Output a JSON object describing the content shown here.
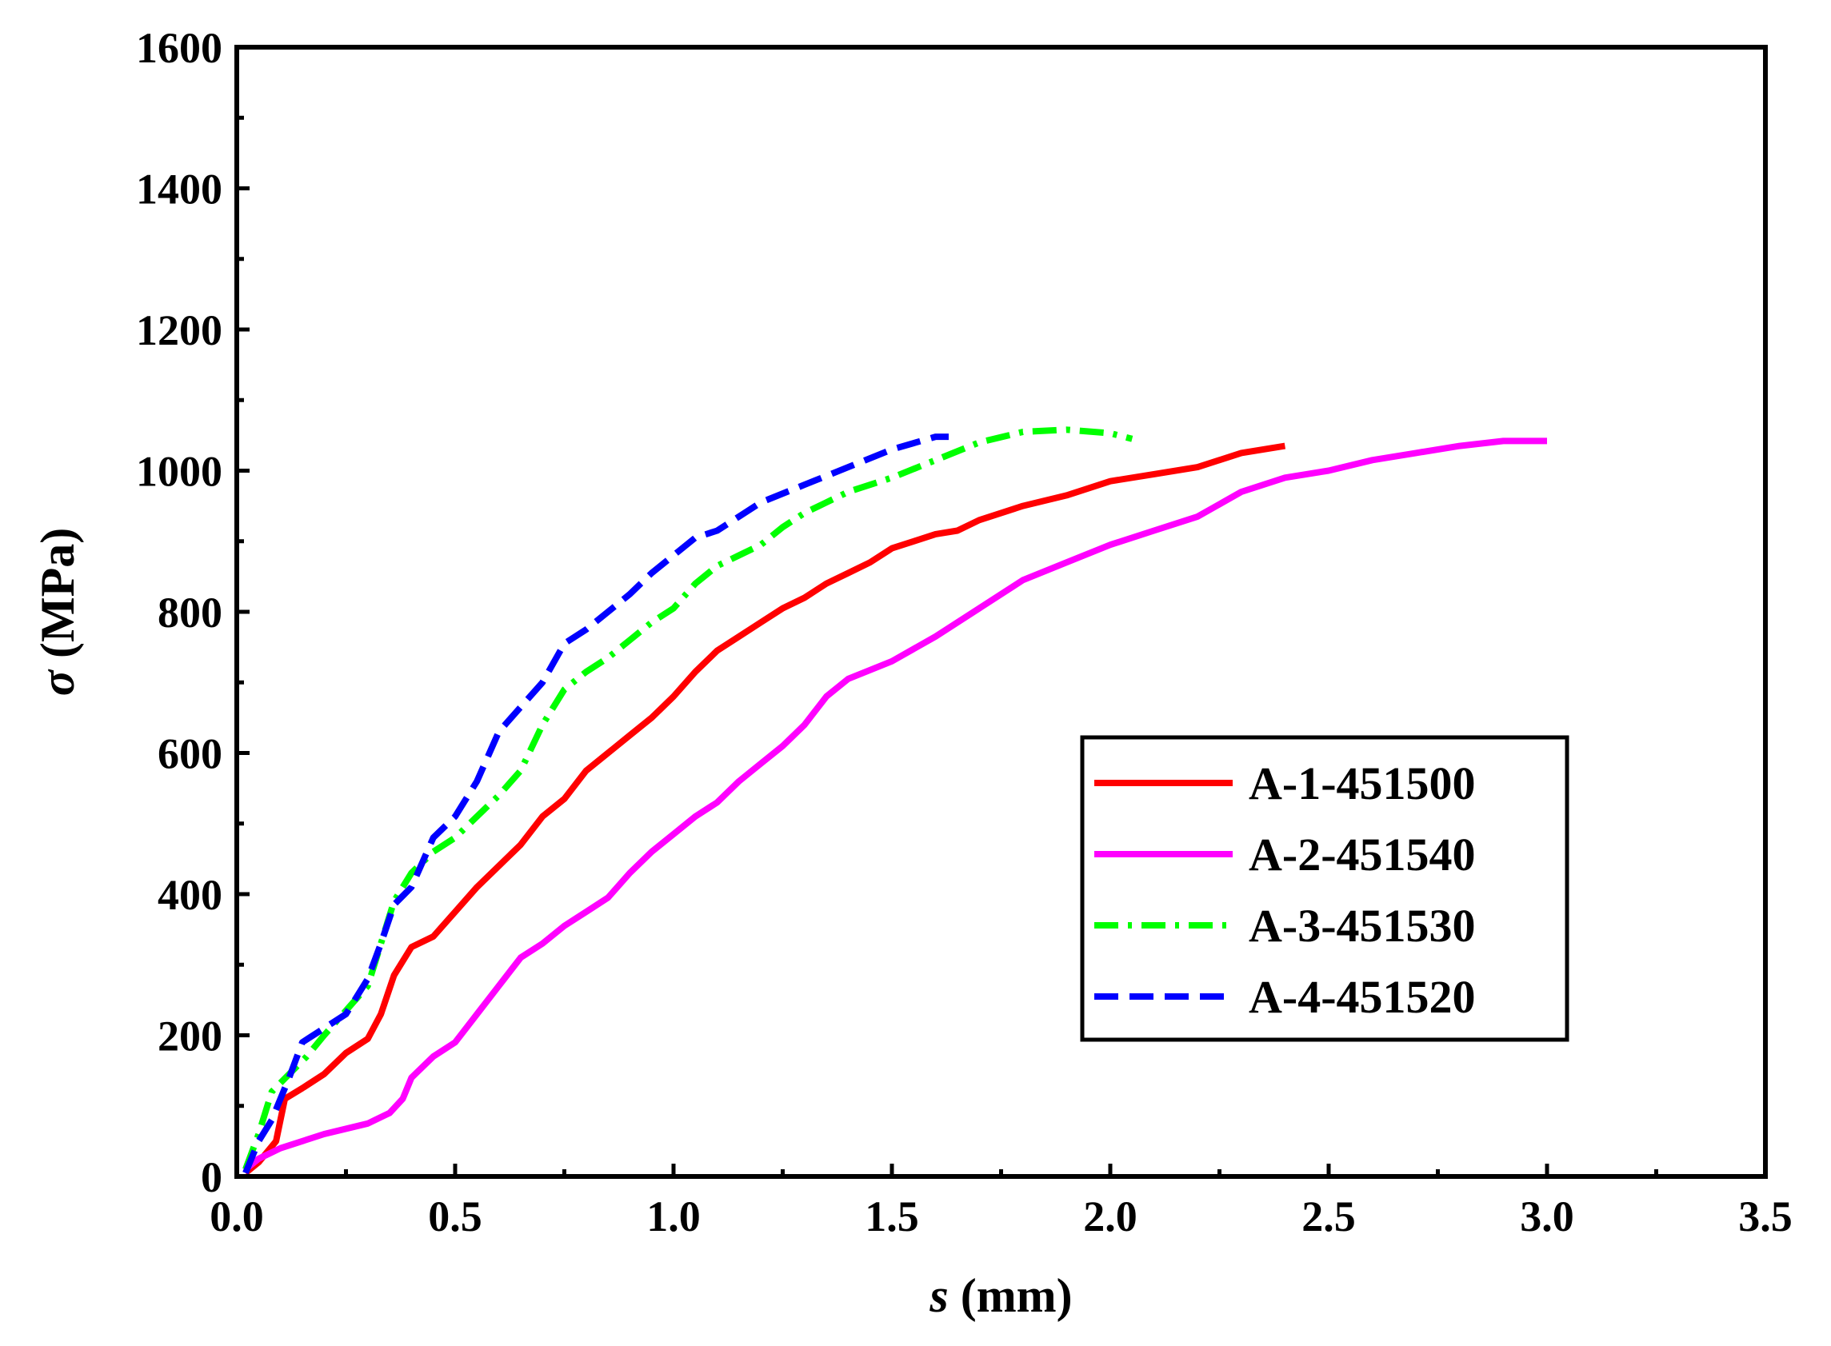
{
  "chart_data": {
    "type": "line",
    "title": "",
    "xlabel_symbol": "s",
    "xlabel_unit": " (mm)",
    "ylabel_symbol": "σ",
    "ylabel_unit": " (MPa)",
    "xlim": [
      0,
      3.5
    ],
    "ylim": [
      0,
      1600
    ],
    "xticks": [
      0,
      0.5,
      1.0,
      1.5,
      2.0,
      2.5,
      3.0,
      3.5
    ],
    "xtick_labels": [
      "0.0",
      "0.5",
      "1.0",
      "1.5",
      "2.0",
      "2.5",
      "3.0",
      "3.5"
    ],
    "yticks": [
      0,
      200,
      400,
      600,
      800,
      1000,
      1200,
      1400,
      1600
    ],
    "ytick_labels": [
      "0",
      "200",
      "400",
      "600",
      "800",
      "1000",
      "1200",
      "1400",
      "1600"
    ],
    "grid": false,
    "legend_position": "bottom-right",
    "series": [
      {
        "name": "A-1-451500",
        "color": "#ff0000",
        "style": "solid",
        "points": [
          [
            0.02,
            5
          ],
          [
            0.05,
            20
          ],
          [
            0.09,
            50
          ],
          [
            0.11,
            110
          ],
          [
            0.15,
            125
          ],
          [
            0.2,
            145
          ],
          [
            0.25,
            175
          ],
          [
            0.3,
            195
          ],
          [
            0.33,
            230
          ],
          [
            0.36,
            285
          ],
          [
            0.4,
            325
          ],
          [
            0.45,
            340
          ],
          [
            0.5,
            375
          ],
          [
            0.55,
            410
          ],
          [
            0.6,
            440
          ],
          [
            0.65,
            470
          ],
          [
            0.7,
            510
          ],
          [
            0.75,
            535
          ],
          [
            0.8,
            575
          ],
          [
            0.85,
            600
          ],
          [
            0.9,
            625
          ],
          [
            0.95,
            650
          ],
          [
            1.0,
            680
          ],
          [
            1.05,
            715
          ],
          [
            1.1,
            745
          ],
          [
            1.15,
            765
          ],
          [
            1.2,
            785
          ],
          [
            1.25,
            805
          ],
          [
            1.3,
            820
          ],
          [
            1.35,
            840
          ],
          [
            1.4,
            855
          ],
          [
            1.45,
            870
          ],
          [
            1.5,
            890
          ],
          [
            1.55,
            900
          ],
          [
            1.6,
            910
          ],
          [
            1.65,
            915
          ],
          [
            1.7,
            930
          ],
          [
            1.8,
            950
          ],
          [
            1.9,
            965
          ],
          [
            2.0,
            985
          ],
          [
            2.1,
            995
          ],
          [
            2.2,
            1005
          ],
          [
            2.3,
            1025
          ],
          [
            2.4,
            1035
          ]
        ]
      },
      {
        "name": "A-2-451540",
        "color": "#ff00ff",
        "style": "solid",
        "points": [
          [
            0.02,
            10
          ],
          [
            0.05,
            25
          ],
          [
            0.1,
            40
          ],
          [
            0.2,
            60
          ],
          [
            0.3,
            75
          ],
          [
            0.35,
            90
          ],
          [
            0.38,
            110
          ],
          [
            0.4,
            140
          ],
          [
            0.45,
            170
          ],
          [
            0.5,
            190
          ],
          [
            0.55,
            230
          ],
          [
            0.6,
            270
          ],
          [
            0.65,
            310
          ],
          [
            0.7,
            330
          ],
          [
            0.75,
            355
          ],
          [
            0.8,
            375
          ],
          [
            0.85,
            395
          ],
          [
            0.9,
            430
          ],
          [
            0.95,
            460
          ],
          [
            1.0,
            485
          ],
          [
            1.05,
            510
          ],
          [
            1.1,
            530
          ],
          [
            1.15,
            560
          ],
          [
            1.2,
            585
          ],
          [
            1.25,
            610
          ],
          [
            1.3,
            640
          ],
          [
            1.35,
            680
          ],
          [
            1.4,
            705
          ],
          [
            1.5,
            730
          ],
          [
            1.6,
            765
          ],
          [
            1.7,
            805
          ],
          [
            1.8,
            845
          ],
          [
            1.9,
            870
          ],
          [
            2.0,
            895
          ],
          [
            2.1,
            915
          ],
          [
            2.2,
            935
          ],
          [
            2.3,
            970
          ],
          [
            2.4,
            990
          ],
          [
            2.5,
            1000
          ],
          [
            2.6,
            1015
          ],
          [
            2.7,
            1025
          ],
          [
            2.8,
            1035
          ],
          [
            2.9,
            1042
          ],
          [
            3.0,
            1042
          ]
        ]
      },
      {
        "name": "A-3-451530",
        "color": "#00ff00",
        "style": "dashdot",
        "points": [
          [
            0.02,
            10
          ],
          [
            0.05,
            60
          ],
          [
            0.08,
            120
          ],
          [
            0.12,
            145
          ],
          [
            0.16,
            170
          ],
          [
            0.2,
            200
          ],
          [
            0.25,
            235
          ],
          [
            0.3,
            270
          ],
          [
            0.33,
            330
          ],
          [
            0.36,
            390
          ],
          [
            0.4,
            430
          ],
          [
            0.45,
            460
          ],
          [
            0.5,
            480
          ],
          [
            0.55,
            510
          ],
          [
            0.6,
            540
          ],
          [
            0.65,
            575
          ],
          [
            0.7,
            640
          ],
          [
            0.75,
            690
          ],
          [
            0.8,
            715
          ],
          [
            0.85,
            735
          ],
          [
            0.9,
            760
          ],
          [
            0.95,
            785
          ],
          [
            1.0,
            805
          ],
          [
            1.05,
            840
          ],
          [
            1.1,
            865
          ],
          [
            1.15,
            880
          ],
          [
            1.2,
            895
          ],
          [
            1.25,
            920
          ],
          [
            1.3,
            940
          ],
          [
            1.35,
            955
          ],
          [
            1.4,
            970
          ],
          [
            1.5,
            990
          ],
          [
            1.6,
            1015
          ],
          [
            1.7,
            1040
          ],
          [
            1.8,
            1055
          ],
          [
            1.9,
            1058
          ],
          [
            2.0,
            1053
          ],
          [
            2.05,
            1045
          ]
        ]
      },
      {
        "name": "A-4-451520",
        "color": "#0000ff",
        "style": "dashed",
        "points": [
          [
            0.02,
            5
          ],
          [
            0.05,
            50
          ],
          [
            0.08,
            80
          ],
          [
            0.1,
            110
          ],
          [
            0.12,
            140
          ],
          [
            0.15,
            190
          ],
          [
            0.2,
            210
          ],
          [
            0.25,
            230
          ],
          [
            0.3,
            280
          ],
          [
            0.33,
            330
          ],
          [
            0.36,
            385
          ],
          [
            0.4,
            410
          ],
          [
            0.45,
            480
          ],
          [
            0.5,
            510
          ],
          [
            0.55,
            560
          ],
          [
            0.6,
            630
          ],
          [
            0.65,
            665
          ],
          [
            0.7,
            700
          ],
          [
            0.75,
            755
          ],
          [
            0.8,
            775
          ],
          [
            0.85,
            800
          ],
          [
            0.9,
            825
          ],
          [
            0.95,
            855
          ],
          [
            1.0,
            880
          ],
          [
            1.05,
            905
          ],
          [
            1.1,
            915
          ],
          [
            1.15,
            935
          ],
          [
            1.2,
            955
          ],
          [
            1.3,
            980
          ],
          [
            1.4,
            1005
          ],
          [
            1.5,
            1030
          ],
          [
            1.6,
            1048
          ],
          [
            1.63,
            1048
          ]
        ]
      }
    ]
  }
}
